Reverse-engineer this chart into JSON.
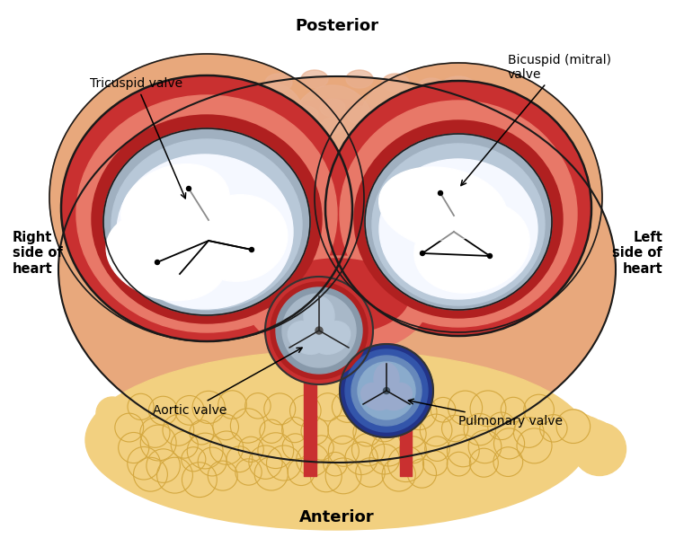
{
  "title_top": "Posterior",
  "title_bottom": "Anterior",
  "label_left": "Right\nside of\nheart",
  "label_right": "Left\nside of\nheart",
  "label_tricuspid": "Tricuspid valve",
  "label_bicuspid": "Bicuspid (mitral)\nvalve",
  "label_aortic": "Aortic valve",
  "label_pulmonary": "Pulmonary valve",
  "bg_color": "#ffffff",
  "outer_tan": "#E8A87C",
  "outer_pink": "#E8896A",
  "outer_texture": "#D9785A",
  "red_wall": "#C93030",
  "dark_red": "#B02020",
  "mid_red": "#D94040",
  "pink_inner": "#E87868",
  "grey_ring": "#A0B0C0",
  "light_grey": "#B8C8D8",
  "valve_white": "#E8EEF5",
  "valve_bright": "#F5F8FF",
  "fat_yellow": "#F2D080",
  "fat_light": "#EEC870",
  "aortic_red": "#AA2020",
  "pulm_blue": "#3355AA",
  "pulm_light": "#5577CC",
  "figsize": [
    7.51,
    5.99
  ],
  "dpi": 100
}
